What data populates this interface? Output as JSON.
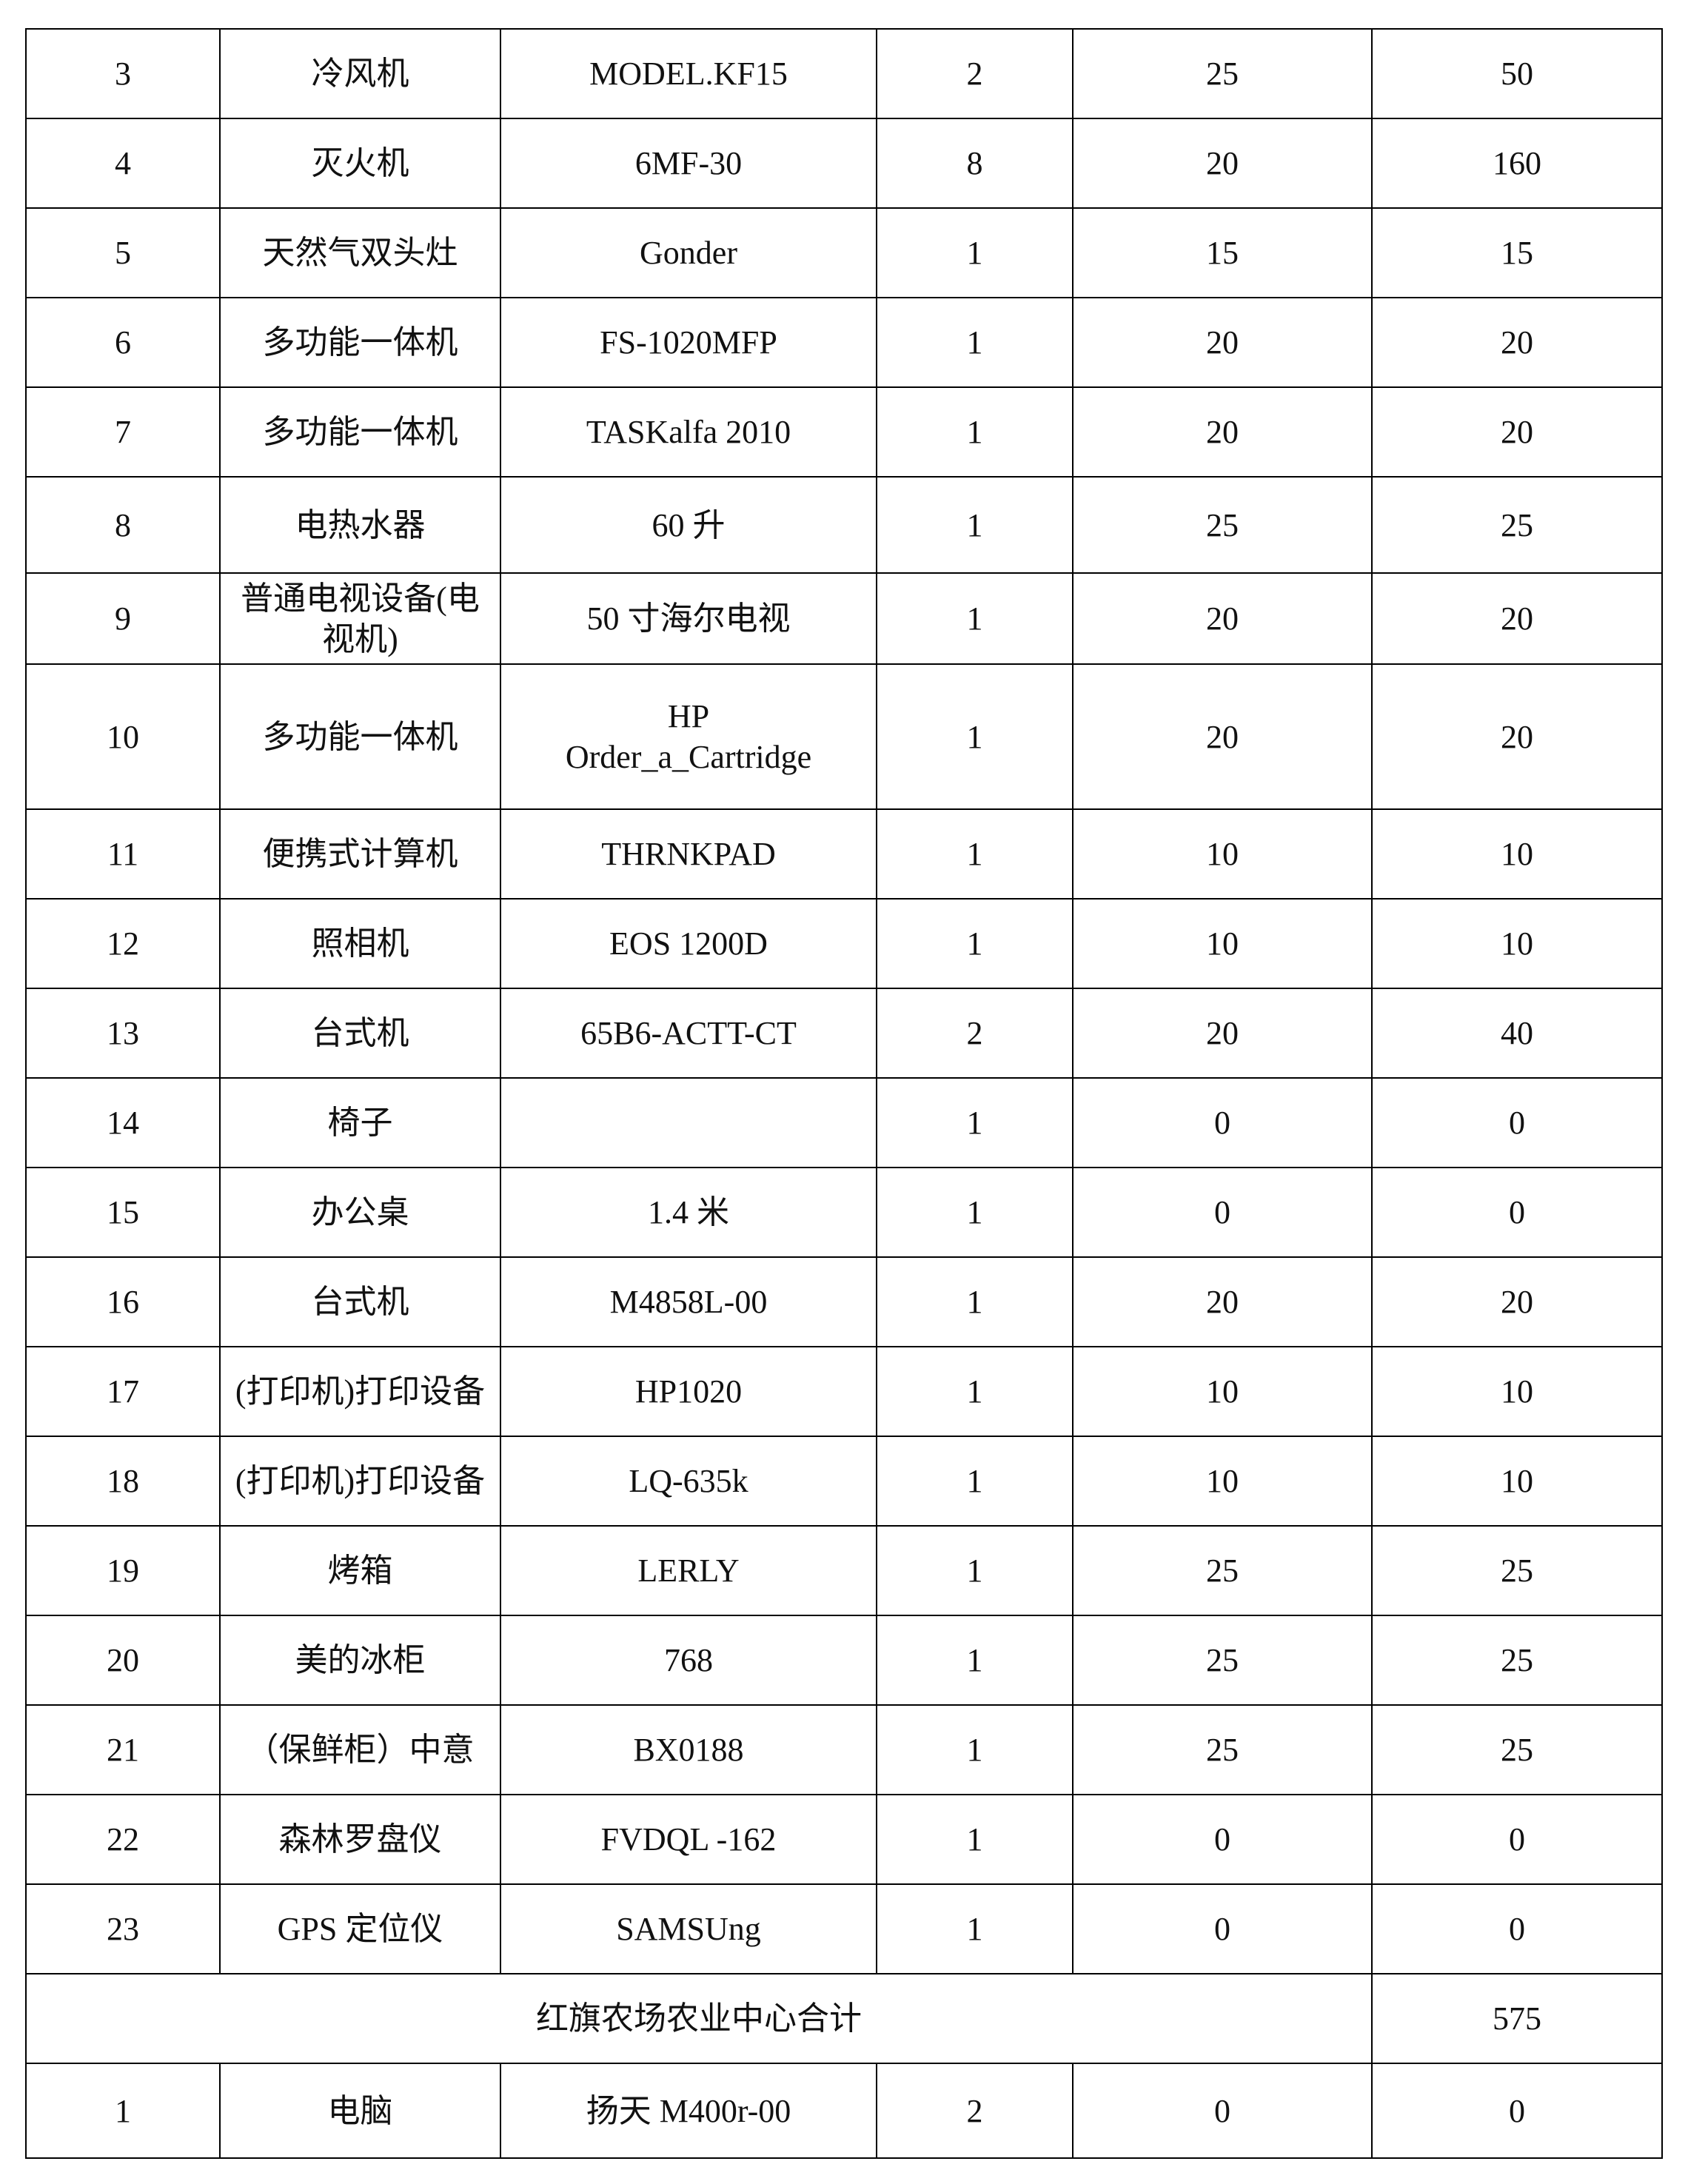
{
  "table": {
    "rows": [
      [
        "3",
        "冷风机",
        "MODEL.KF15",
        "2",
        "25",
        "50"
      ],
      [
        "4",
        "灭火机",
        "6MF-30",
        "8",
        "20",
        "160"
      ],
      [
        "5",
        "天然气双头灶",
        "Gonder",
        "1",
        "15",
        "15"
      ],
      [
        "6",
        "多功能一体机",
        "FS-1020MFP",
        "1",
        "20",
        "20"
      ],
      [
        "7",
        "多功能一体机",
        "TASKalfa 2010",
        "1",
        "20",
        "20"
      ],
      [
        "8",
        "电热水器",
        "60 升",
        "1",
        "25",
        "25"
      ],
      [
        "9",
        "普通电视设备(电视机)",
        "50 寸海尔电视",
        "1",
        "20",
        "20"
      ],
      [
        "10",
        "多功能一体机",
        "HP\nOrder_a_Cartridge",
        "1",
        "20",
        "20"
      ],
      [
        "11",
        "便携式计算机",
        "THRNKPAD",
        "1",
        "10",
        "10"
      ],
      [
        "12",
        "照相机",
        "EOS 1200D",
        "1",
        "10",
        "10"
      ],
      [
        "13",
        "台式机",
        "65B6-ACTT-CT",
        "2",
        "20",
        "40"
      ],
      [
        "14",
        "椅子",
        null,
        "1",
        "0",
        "0"
      ],
      [
        "15",
        "办公桌",
        "1.4 米",
        "1",
        "0",
        "0"
      ],
      [
        "16",
        "台式机",
        "M4858L-00",
        "1",
        "20",
        "20"
      ],
      [
        "17",
        "(打印机)打印设备",
        "HP1020",
        "1",
        "10",
        "10"
      ],
      [
        "18",
        "(打印机)打印设备",
        "LQ-635k",
        "1",
        "10",
        "10"
      ],
      [
        "19",
        "烤箱",
        "LERLY",
        "1",
        "25",
        "25"
      ],
      [
        "20",
        "美的冰柜",
        "768",
        "1",
        "25",
        "25"
      ],
      [
        "21",
        "（保鲜柜）中意",
        "BX0188",
        "1",
        "25",
        "25"
      ],
      [
        "22",
        "森林罗盘仪",
        "FVDQL -162",
        "1",
        "0",
        "0"
      ],
      [
        "23",
        "GPS 定位仪",
        "SAMSUng",
        "1",
        "0",
        "0"
      ]
    ],
    "subtotal": {
      "label": "红旗农场农业中心合计",
      "value": "575"
    },
    "rows_after": [
      [
        "1",
        "电脑",
        "扬天 M400r-00",
        "2",
        "0",
        "0"
      ]
    ]
  }
}
